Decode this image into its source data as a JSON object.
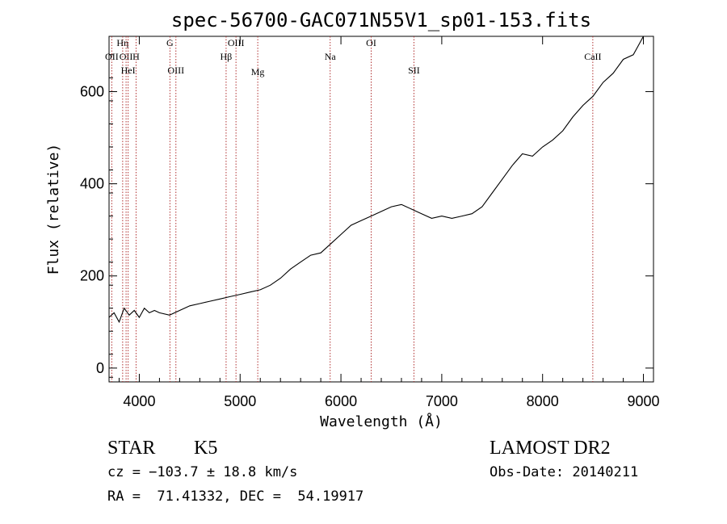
{
  "chart_data": {
    "type": "line",
    "title": "spec-56700-GAC071N55V1_sp01-153.fits",
    "xlabel": "Wavelength (Å)",
    "ylabel": "Flux (relative)",
    "xlim": [
      3700,
      9100
    ],
    "ylim": [
      -30,
      720
    ],
    "x_ticks": [
      4000,
      5000,
      6000,
      7000,
      8000,
      9000
    ],
    "y_ticks": [
      0,
      200,
      400,
      600
    ],
    "grid": false,
    "series": [
      {
        "x": [
          3700,
          3750,
          3800,
          3850,
          3900,
          3950,
          4000,
          4050,
          4100,
          4150,
          4200,
          4300,
          4400,
          4500,
          4600,
          4700,
          4800,
          4900,
          5000,
          5100,
          5200,
          5300,
          5400,
          5500,
          5600,
          5700,
          5800,
          5900,
          6000,
          6100,
          6200,
          6300,
          6400,
          6500,
          6600,
          6700,
          6800,
          6900,
          7000,
          7100,
          7200,
          7300,
          7400,
          7500,
          7600,
          7700,
          7800,
          7900,
          8000,
          8100,
          8200,
          8300,
          8400,
          8500,
          8600,
          8700,
          8800,
          8900,
          8950,
          9000
        ],
        "y": [
          110,
          120,
          100,
          130,
          115,
          125,
          110,
          130,
          120,
          125,
          120,
          115,
          125,
          135,
          140,
          145,
          150,
          155,
          160,
          165,
          170,
          180,
          195,
          215,
          230,
          245,
          250,
          270,
          290,
          310,
          320,
          330,
          340,
          350,
          355,
          345,
          335,
          325,
          330,
          325,
          330,
          335,
          350,
          380,
          410,
          440,
          465,
          460,
          480,
          495,
          515,
          545,
          570,
          590,
          620,
          640,
          670,
          680,
          700,
          720
        ]
      }
    ],
    "line_markers": [
      {
        "label": "OII",
        "x": 3727
      },
      {
        "label": "Hη",
        "x": 3835
      },
      {
        "label": "OII",
        "x": 3869
      },
      {
        "label": "HeI",
        "x": 3889
      },
      {
        "label": "H",
        "x": 3968
      },
      {
        "label": "G",
        "x": 4304
      },
      {
        "label": "OIII",
        "x": 4363
      },
      {
        "label": "Hβ",
        "x": 4861
      },
      {
        "label": "OIII",
        "x": 4959
      },
      {
        "label": "Mg",
        "x": 5175
      },
      {
        "label": "Na",
        "x": 5893
      },
      {
        "label": "OI",
        "x": 6300
      },
      {
        "label": "SII",
        "x": 6724
      },
      {
        "label": "CaII",
        "x": 8498
      }
    ]
  },
  "info": {
    "object_class": "STAR",
    "subclass": "K5",
    "survey": "LAMOST DR2",
    "redshift": "cz = −103.7 ± 18.8 km/s",
    "obs_date": "Obs-Date: 20140211",
    "coords": "RA =  71.41332, DEC =  54.19917"
  }
}
